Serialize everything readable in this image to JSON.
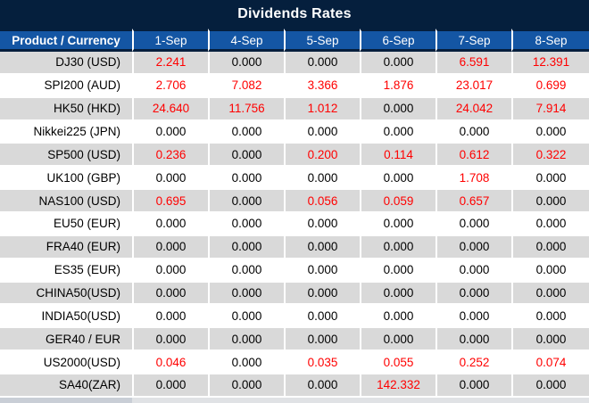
{
  "title": "Dividends Rates",
  "table": {
    "columns": [
      "Product / Currency",
      "1-Sep",
      "4-Sep",
      "5-Sep",
      "6-Sep",
      "7-Sep",
      "8-Sep"
    ],
    "rows": [
      {
        "product": "DJ30 (USD)",
        "values": [
          "2.241",
          "0.000",
          "0.000",
          "0.000",
          "6.591",
          "12.391"
        ]
      },
      {
        "product": "SPI200 (AUD)",
        "values": [
          "2.706",
          "7.082",
          "3.366",
          "1.876",
          "23.017",
          "0.699"
        ]
      },
      {
        "product": "HK50 (HKD)",
        "values": [
          "24.640",
          "11.756",
          "1.012",
          "0.000",
          "24.042",
          "7.914"
        ]
      },
      {
        "product": "Nikkei225 (JPN)",
        "values": [
          "0.000",
          "0.000",
          "0.000",
          "0.000",
          "0.000",
          "0.000"
        ]
      },
      {
        "product": "SP500 (USD)",
        "values": [
          "0.236",
          "0.000",
          "0.200",
          "0.114",
          "0.612",
          "0.322"
        ]
      },
      {
        "product": "UK100 (GBP)",
        "values": [
          "0.000",
          "0.000",
          "0.000",
          "0.000",
          "1.708",
          "0.000"
        ]
      },
      {
        "product": "NAS100 (USD)",
        "values": [
          "0.695",
          "0.000",
          "0.056",
          "0.059",
          "0.657",
          "0.000"
        ]
      },
      {
        "product": "EU50 (EUR)",
        "values": [
          "0.000",
          "0.000",
          "0.000",
          "0.000",
          "0.000",
          "0.000"
        ]
      },
      {
        "product": "FRA40 (EUR)",
        "values": [
          "0.000",
          "0.000",
          "0.000",
          "0.000",
          "0.000",
          "0.000"
        ]
      },
      {
        "product": "ES35 (EUR)",
        "values": [
          "0.000",
          "0.000",
          "0.000",
          "0.000",
          "0.000",
          "0.000"
        ]
      },
      {
        "product": "CHINA50(USD)",
        "values": [
          "0.000",
          "0.000",
          "0.000",
          "0.000",
          "0.000",
          "0.000"
        ]
      },
      {
        "product": "INDIA50(USD)",
        "values": [
          "0.000",
          "0.000",
          "0.000",
          "0.000",
          "0.000",
          "0.000"
        ]
      },
      {
        "product": "GER40 / EUR",
        "values": [
          "0.000",
          "0.000",
          "0.000",
          "0.000",
          "0.000",
          "0.000"
        ]
      },
      {
        "product": "US2000(USD)",
        "values": [
          "0.046",
          "0.000",
          "0.035",
          "0.055",
          "0.252",
          "0.074"
        ]
      },
      {
        "product": "SA40(ZAR)",
        "values": [
          "0.000",
          "0.000",
          "0.000",
          "142.332",
          "0.000",
          "0.000"
        ]
      }
    ]
  },
  "colors": {
    "title_bg": "#051f3d",
    "header_bg": "#1456a4",
    "row_alt_bg": "#d9d9d9",
    "row_bg": "#ffffff",
    "positive_value": "#ff0000",
    "zero_value": "#000000",
    "header_text": "#ffffff",
    "bottom_edge_left": "#c9ced6",
    "bottom_edge_right": "#e0e2e5"
  }
}
